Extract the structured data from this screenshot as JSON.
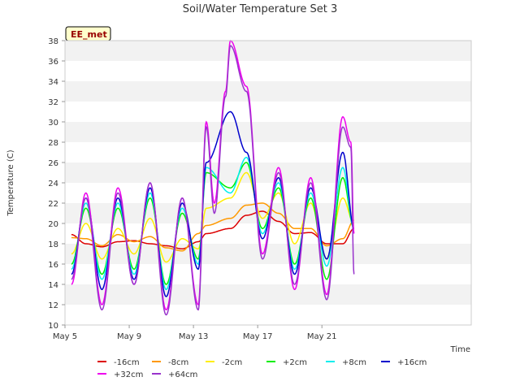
{
  "chart_data": {
    "type": "line",
    "title": "Soil/Water Temperature Set 3",
    "site_label": "EE_met",
    "xlabel": "Time",
    "ylabel": "Temperature (C)",
    "ylim": [
      10,
      38
    ],
    "yticks": [
      10,
      12,
      14,
      16,
      18,
      20,
      22,
      24,
      26,
      28,
      30,
      32,
      34,
      36,
      38
    ],
    "xlim_days": [
      5,
      30.3
    ],
    "xticks": [
      {
        "label": "May 5",
        "day": 5
      },
      {
        "label": "May 9",
        "day": 9
      },
      {
        "label": "May 13",
        "day": 13
      },
      {
        "label": "May 17",
        "day": 17
      },
      {
        "label": "May 21",
        "day": 21
      }
    ],
    "grid": "horizontal bands",
    "legend_position": "bottom",
    "series": [
      {
        "name": "-16cm",
        "color": "#dd0000",
        "x": [
          5.4,
          6.3,
          7.3,
          8.3,
          9.3,
          10.3,
          11.3,
          12.3,
          13.3,
          13.8,
          15.3,
          16.3,
          17.3,
          18.3,
          19.3,
          20.3,
          21.3,
          22.3,
          23.0
        ],
        "y": [
          18.9,
          18.0,
          17.7,
          18.2,
          18.3,
          18.0,
          17.8,
          17.5,
          18.2,
          19.0,
          19.5,
          20.8,
          21.2,
          20.2,
          19.0,
          19.1,
          18.0,
          18.0,
          19.5
        ]
      },
      {
        "name": "-8cm",
        "color": "#ff9900",
        "x": [
          5.4,
          6.3,
          7.3,
          8.3,
          9.3,
          10.3,
          11.3,
          12.3,
          13.3,
          13.8,
          15.3,
          16.3,
          17.3,
          18.3,
          19.3,
          20.3,
          21.3,
          22.3,
          23.0
        ],
        "y": [
          18.6,
          18.5,
          17.8,
          18.9,
          18.2,
          18.7,
          17.6,
          17.3,
          19.0,
          19.8,
          20.5,
          21.8,
          22.0,
          21.0,
          19.5,
          19.5,
          17.8,
          18.5,
          20.3
        ]
      },
      {
        "name": "-2cm",
        "color": "#ffee00",
        "x": [
          5.4,
          6.3,
          7.3,
          8.3,
          9.3,
          10.3,
          11.3,
          12.3,
          13.3,
          13.8,
          15.3,
          16.3,
          17.3,
          18.3,
          19.3,
          20.3,
          21.3,
          22.3,
          23.0
        ],
        "y": [
          17.0,
          20.0,
          16.5,
          19.5,
          17.0,
          20.5,
          16.2,
          18.5,
          17.5,
          21.5,
          22.5,
          25.0,
          20.5,
          23.0,
          18.0,
          22.0,
          16.5,
          22.5,
          20.0
        ]
      },
      {
        "name": "+2cm",
        "color": "#00ee00",
        "x": [
          5.4,
          6.3,
          7.3,
          8.3,
          9.3,
          10.3,
          11.3,
          12.3,
          13.3,
          13.8,
          15.3,
          16.3,
          17.3,
          18.3,
          19.3,
          20.3,
          21.3,
          22.3,
          23.0
        ],
        "y": [
          16.0,
          21.5,
          15.0,
          21.5,
          15.5,
          22.5,
          14.0,
          21.0,
          16.5,
          25.0,
          23.5,
          26.0,
          19.5,
          23.5,
          16.0,
          22.5,
          14.5,
          24.5,
          19.5
        ]
      },
      {
        "name": "+8cm",
        "color": "#00eeee",
        "x": [
          5.4,
          6.3,
          7.3,
          8.3,
          9.3,
          10.3,
          11.3,
          12.3,
          13.3,
          13.8,
          15.3,
          16.3,
          17.3,
          18.3,
          19.3,
          20.3,
          21.3,
          22.3,
          23.0
        ],
        "y": [
          15.5,
          22.0,
          14.5,
          22.0,
          15.0,
          23.0,
          13.5,
          21.5,
          16.0,
          25.5,
          23.0,
          26.5,
          19.0,
          24.0,
          15.5,
          23.0,
          15.8,
          25.5,
          19.5
        ]
      },
      {
        "name": "+16cm",
        "color": "#0000cc",
        "x": [
          5.4,
          6.3,
          7.3,
          8.3,
          9.3,
          10.3,
          11.3,
          12.3,
          13.3,
          13.8,
          15.3,
          16.3,
          17.3,
          18.3,
          19.3,
          20.3,
          21.3,
          22.3,
          23.0
        ],
        "y": [
          15.0,
          22.5,
          13.5,
          22.5,
          14.5,
          23.5,
          12.8,
          22.0,
          15.5,
          26.0,
          31.0,
          27.0,
          18.5,
          24.5,
          15.0,
          23.5,
          16.5,
          27.0,
          19.5
        ]
      },
      {
        "name": "+32cm",
        "color": "#ee00ee",
        "x": [
          5.4,
          6.3,
          7.3,
          8.3,
          9.3,
          10.3,
          11.3,
          12.3,
          13.3,
          13.8,
          14.3,
          15.0,
          15.3,
          16.3,
          17.3,
          18.3,
          19.3,
          20.3,
          21.3,
          22.3,
          22.8,
          23.0
        ],
        "y": [
          14.0,
          23.0,
          12.0,
          23.5,
          14.0,
          24.0,
          11.5,
          22.5,
          12.0,
          30.0,
          22.0,
          33.0,
          38.0,
          33.5,
          17.0,
          25.5,
          13.5,
          24.5,
          13.0,
          30.5,
          28.0,
          19.0
        ]
      },
      {
        "name": "+64cm",
        "color": "#9933cc",
        "x": [
          5.4,
          6.3,
          7.3,
          8.3,
          9.3,
          10.3,
          11.3,
          12.3,
          13.3,
          13.8,
          14.3,
          15.0,
          15.3,
          16.3,
          17.3,
          18.3,
          19.3,
          20.3,
          21.3,
          22.3,
          22.8,
          23.0
        ],
        "y": [
          14.5,
          22.5,
          11.5,
          23.0,
          14.0,
          24.0,
          11.0,
          22.5,
          11.5,
          29.5,
          21.0,
          32.5,
          37.5,
          33.0,
          16.5,
          25.0,
          14.0,
          24.0,
          12.5,
          29.5,
          27.5,
          15.0
        ]
      }
    ]
  }
}
